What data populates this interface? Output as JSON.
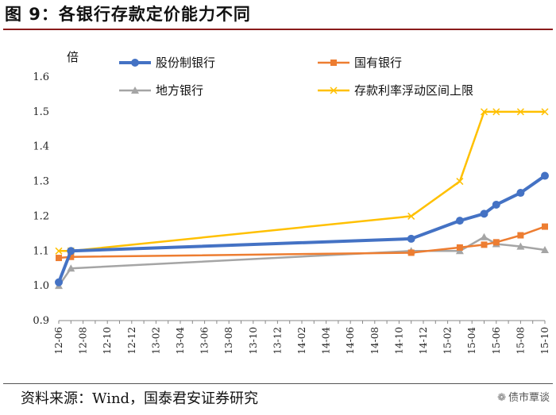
{
  "header": {
    "title": "图 9：各银行存款定价能力不同"
  },
  "footer": {
    "source": "资料来源：Wind，国泰君安证券研究",
    "watermark": "债市覃谈",
    "watermark_icon": "wechat-icon"
  },
  "chart_data": {
    "type": "line",
    "title": "图 9：各银行存款定价能力不同",
    "ylabel": "倍",
    "xlabel": "",
    "ylim": [
      0.9,
      1.6
    ],
    "yticks": [
      "0.9",
      "1.0",
      "1.1",
      "1.2",
      "1.3",
      "1.4",
      "1.5",
      "1.6"
    ],
    "grid": false,
    "legend_position": "top",
    "categories": [
      "12-06",
      "12-07",
      "12-08",
      "12-09",
      "12-10",
      "12-11",
      "12-12",
      "13-01",
      "13-02",
      "13-03",
      "13-04",
      "13-05",
      "13-06",
      "13-07",
      "13-08",
      "13-09",
      "13-10",
      "13-11",
      "13-12",
      "14-01",
      "14-02",
      "14-03",
      "14-04",
      "14-05",
      "14-06",
      "14-07",
      "14-08",
      "14-09",
      "14-10",
      "14-11",
      "14-12",
      "15-01",
      "15-02",
      "15-03",
      "15-04",
      "15-05",
      "15-06",
      "15-07",
      "15-08",
      "15-09",
      "15-10"
    ],
    "tick_labels": [
      "12-06",
      "12-08",
      "12-10",
      "12-12",
      "13-02",
      "13-04",
      "13-06",
      "13-08",
      "13-10",
      "13-12",
      "14-02",
      "14-04",
      "14-06",
      "14-08",
      "14-10",
      "14-12",
      "15-02",
      "15-04",
      "15-06",
      "15-08",
      "15-10"
    ],
    "series": [
      {
        "name": "股份制银行",
        "color": "#4472C4",
        "marker": "circle",
        "points": [
          [
            "12-06",
            1.01
          ],
          [
            "12-07",
            1.1
          ],
          [
            "14-11",
            1.135
          ],
          [
            "15-03",
            1.187
          ],
          [
            "15-05",
            1.207
          ],
          [
            "15-06",
            1.233
          ],
          [
            "15-08",
            1.267
          ],
          [
            "15-10",
            1.316
          ]
        ]
      },
      {
        "name": "国有银行",
        "color": "#ED7D31",
        "marker": "square",
        "points": [
          [
            "12-06",
            1.08
          ],
          [
            "12-07",
            1.083
          ],
          [
            "14-11",
            1.095
          ],
          [
            "15-03",
            1.11
          ],
          [
            "15-05",
            1.118
          ],
          [
            "15-06",
            1.125
          ],
          [
            "15-08",
            1.145
          ],
          [
            "15-10",
            1.17
          ]
        ]
      },
      {
        "name": "地方银行",
        "color": "#A5A5A5",
        "marker": "triangle",
        "points": [
          [
            "12-06",
            1.0
          ],
          [
            "12-07",
            1.05
          ],
          [
            "14-11",
            1.1
          ],
          [
            "15-03",
            1.1
          ],
          [
            "15-05",
            1.14
          ],
          [
            "15-06",
            1.12
          ],
          [
            "15-08",
            1.113
          ],
          [
            "15-10",
            1.103
          ]
        ]
      },
      {
        "name": "存款利率浮动区间上限",
        "color": "#FFC000",
        "marker": "x",
        "points": [
          [
            "12-06",
            1.1
          ],
          [
            "12-07",
            1.1
          ],
          [
            "14-11",
            1.2
          ],
          [
            "15-03",
            1.3
          ],
          [
            "15-05",
            1.5
          ],
          [
            "15-06",
            1.5
          ],
          [
            "15-08",
            1.5
          ],
          [
            "15-10",
            1.5
          ]
        ]
      }
    ]
  }
}
